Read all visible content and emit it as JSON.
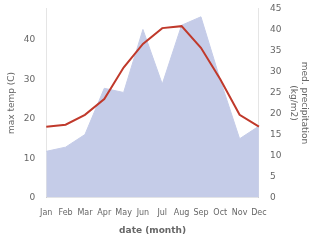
{
  "chart_data": {
    "type": "line",
    "categories": [
      "Jan",
      "Feb",
      "Mar",
      "Apr",
      "May",
      "Jun",
      "Jul",
      "Aug",
      "Sep",
      "Oct",
      "Nov",
      "Dec"
    ],
    "series": [
      {
        "type": "line",
        "color": "#c0392b",
        "axis": "y",
        "values": [
          18.0,
          18.5,
          21.0,
          25.0,
          33.0,
          39.0,
          43.0,
          43.5,
          38.0,
          30.0,
          21.0,
          18.0
        ]
      },
      {
        "type": "area",
        "color": "#c5cce8",
        "axis": "y2",
        "values": [
          11,
          12,
          15,
          26,
          25,
          40,
          27,
          41,
          43,
          28,
          14,
          17
        ]
      }
    ],
    "xlabel": "date (month)",
    "ylabel": "max temp (C)",
    "y2label": "med. precipitation\n(kg/m2)",
    "ylim": [
      0,
      48
    ],
    "yticks": [
      0,
      10,
      20,
      30,
      40
    ],
    "y2lim": [
      0,
      45
    ],
    "y2ticks": [
      0,
      5,
      10,
      15,
      20,
      25,
      30,
      35,
      40,
      45
    ],
    "grid": false
  }
}
